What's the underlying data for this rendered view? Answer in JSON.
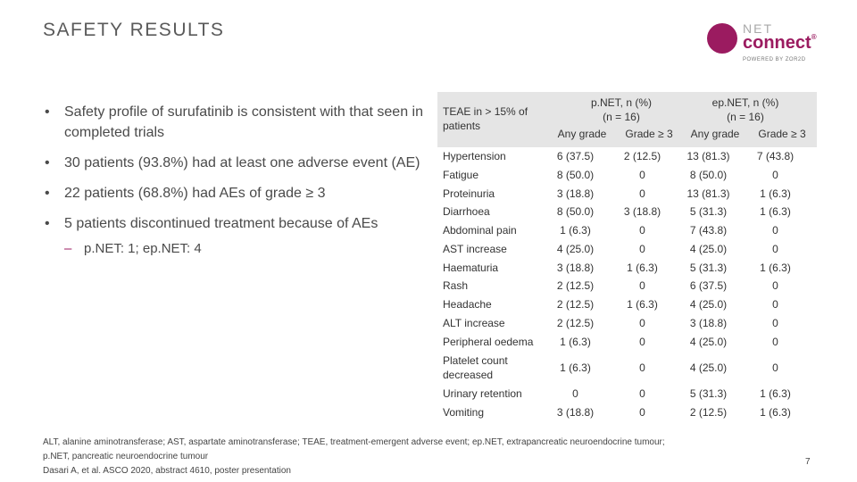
{
  "title": "SAFETY RESULTS",
  "logo": {
    "line1": "NET",
    "line2": "connect",
    "tm": "®",
    "line3": "POWERED BY ZOR2D"
  },
  "bullets": [
    "Safety profile of surufatinib is consistent with that seen in completed trials",
    "30 patients (93.8%) had at least one adverse event (AE)",
    "22 patients (68.8%) had AEs of grade ≥ 3",
    "5 patients discontinued treatment because of AEs"
  ],
  "sub_bullet": "p.NET: 1; ep.NET: 4",
  "table": {
    "header_label": "TEAE in > 15% of patients",
    "groups": [
      {
        "name": "p.NET, n (%)",
        "n": "(n = 16)"
      },
      {
        "name": "ep.NET, n (%)",
        "n": "(n = 16)"
      }
    ],
    "subheaders": [
      "Any grade",
      "Grade ≥ 3",
      "Any grade",
      "Grade ≥ 3"
    ],
    "rows": [
      {
        "label": "Hypertension",
        "v": [
          "6 (37.5)",
          "2 (12.5)",
          "13 (81.3)",
          "7 (43.8)"
        ]
      },
      {
        "label": "Fatigue",
        "v": [
          "8 (50.0)",
          "0",
          "8 (50.0)",
          "0"
        ]
      },
      {
        "label": "Proteinuria",
        "v": [
          "3 (18.8)",
          "0",
          "13 (81.3)",
          "1 (6.3)"
        ]
      },
      {
        "label": "Diarrhoea",
        "v": [
          "8 (50.0)",
          "3 (18.8)",
          "5 (31.3)",
          "1 (6.3)"
        ]
      },
      {
        "label": "Abdominal pain",
        "v": [
          "1 (6.3)",
          "0",
          "7 (43.8)",
          "0"
        ]
      },
      {
        "label": "AST increase",
        "v": [
          "4 (25.0)",
          "0",
          "4 (25.0)",
          "0"
        ]
      },
      {
        "label": "Haematuria",
        "v": [
          "3 (18.8)",
          "1 (6.3)",
          "5 (31.3)",
          "1 (6.3)"
        ]
      },
      {
        "label": "Rash",
        "v": [
          "2 (12.5)",
          "0",
          "6 (37.5)",
          "0"
        ]
      },
      {
        "label": "Headache",
        "v": [
          "2 (12.5)",
          "1 (6.3)",
          "4 (25.0)",
          "0"
        ]
      },
      {
        "label": "ALT increase",
        "v": [
          "2 (12.5)",
          "0",
          "3 (18.8)",
          "0"
        ]
      },
      {
        "label": "Peripheral oedema",
        "v": [
          "1 (6.3)",
          "0",
          "4 (25.0)",
          "0"
        ]
      },
      {
        "label": "Platelet count decreased",
        "v": [
          "1 (6.3)",
          "0",
          "4 (25.0)",
          "0"
        ]
      },
      {
        "label": "Urinary retention",
        "v": [
          "0",
          "0",
          "5 (31.3)",
          "1 (6.3)"
        ]
      },
      {
        "label": "Vomiting",
        "v": [
          "3 (18.8)",
          "0",
          "2 (12.5)",
          "1 (6.3)"
        ]
      }
    ]
  },
  "footnote": {
    "line1": "ALT, alanine aminotransferase; AST, aspartate aminotransferase; TEAE, treatment-emergent adverse event; ep.NET, extrapancreatic neuroendocrine tumour;",
    "line2": "p.NET, pancreatic neuroendocrine tumour",
    "line3": "Dasari A, et al. ASCO 2020, abstract 4610, poster presentation"
  },
  "page_number": "7"
}
